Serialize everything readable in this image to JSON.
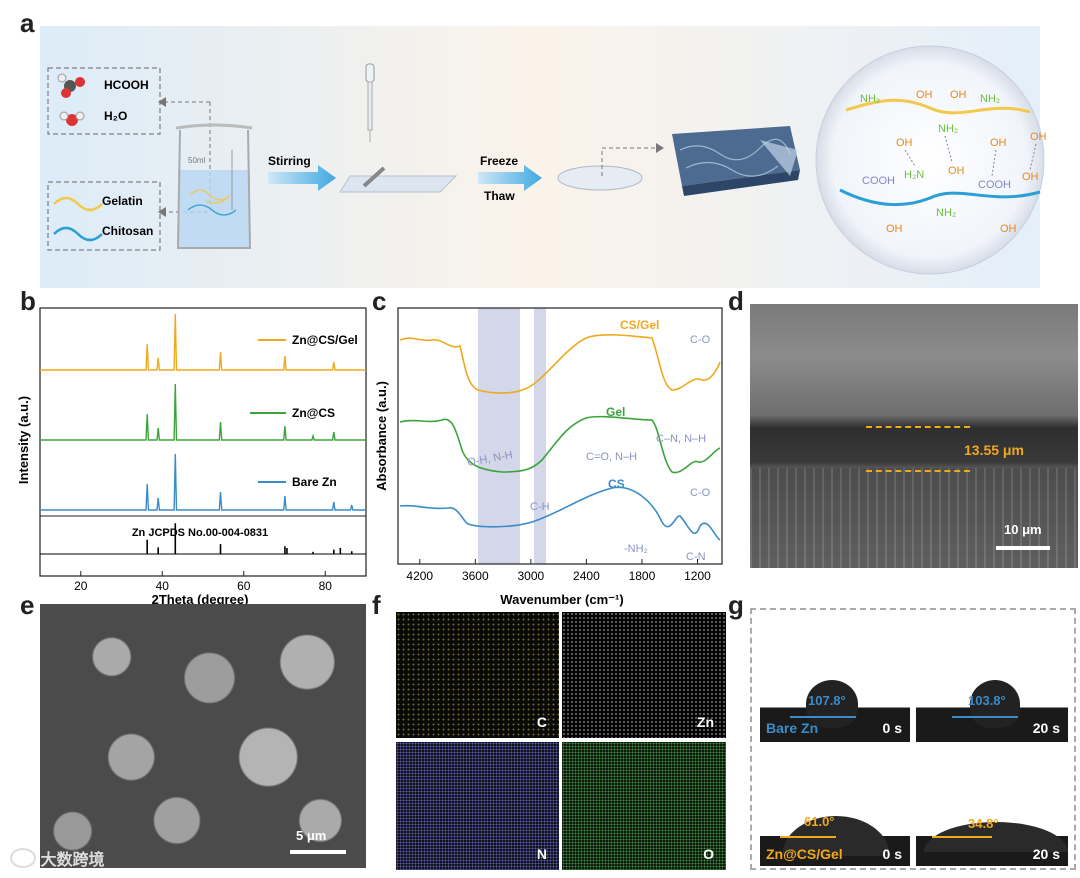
{
  "panel_letters": {
    "a": "a",
    "b": "b",
    "c": "c",
    "d": "d",
    "e": "e",
    "f": "f",
    "g": "g"
  },
  "panel_a": {
    "hcooh": "HCOOH",
    "h2o": "H₂O",
    "gelatin": "Gelatin",
    "chitosan": "Chitosan",
    "beaker_label": "50ml",
    "stirring": "Stirring",
    "freeze": "Freeze",
    "thaw": "Thaw",
    "network_labels": [
      "NH₂",
      "OH",
      "NH₂",
      "OH",
      "NH₂",
      "OH",
      "OH",
      "OH",
      "H₂N",
      "OH",
      "COOH",
      "OH",
      "COOH",
      "NH₂",
      "OH",
      "OH"
    ],
    "colors": {
      "gelatin": "#f2c94c",
      "chitosan": "#2a9fd6",
      "amine": "#6cbf3f",
      "hydroxyl": "#e88a1a",
      "carboxyl": "#8088c8"
    }
  },
  "panel_b": {
    "xlabel": "2Theta (degree)",
    "ylabel": "Intensity (a.u.)",
    "xticks": [
      "20",
      "40",
      "60",
      "80"
    ],
    "reference_label": "Zn JCPDS No.00-004-0831",
    "legend": [
      {
        "name": "Zn@CS/Gel",
        "color": "#f0a81c"
      },
      {
        "name": "Zn@CS",
        "color": "#3aa53a"
      },
      {
        "name": "Bare Zn",
        "color": "#3a8cc8"
      }
    ]
  },
  "chart_data": {
    "type": "line",
    "xlabel": "2Theta (degree)",
    "ylabel": "Intensity (a.u.)",
    "xlim": [
      10,
      90
    ],
    "reference_peaks_2theta": [
      36.3,
      39.0,
      43.2,
      54.3,
      70.1,
      70.6,
      77.0,
      82.1,
      83.7,
      86.5
    ],
    "series": [
      {
        "name": "Zn@CS/Gel",
        "peaks_2theta": [
          36.3,
          39.0,
          43.2,
          54.3,
          70.1,
          82.1
        ]
      },
      {
        "name": "Zn@CS",
        "peaks_2theta": [
          36.3,
          39.0,
          43.2,
          54.3,
          70.1,
          77.0,
          82.1
        ]
      },
      {
        "name": "Bare Zn",
        "peaks_2theta": [
          36.3,
          39.0,
          43.2,
          54.3,
          70.1,
          82.1,
          86.5
        ]
      }
    ]
  },
  "panel_c": {
    "xlabel": "Wavenumber (cm⁻¹)",
    "ylabel": "Absorbance (a.u.)",
    "xticks": [
      "4200",
      "3600",
      "3000",
      "2400",
      "1800",
      "1200"
    ],
    "series_labels": [
      "CS/Gel",
      "Gel",
      "CS"
    ],
    "annotations": [
      "C-O",
      "O-H, N-H",
      "C–N, N–H",
      "C=O, N–H",
      "C-O",
      "C-H",
      "-NH₂",
      "C-N"
    ],
    "colors": {
      "csgel": "#f0a81c",
      "gel": "#3aa53a",
      "cs": "#3a8cc8",
      "band": "#c4c9e2",
      "annotation": "#8a93c4"
    }
  },
  "panel_d": {
    "thickness": "13.55 μm",
    "scale": "10 μm"
  },
  "panel_e": {
    "scale": "5 μm",
    "watermark": "大数跨境"
  },
  "panel_f": {
    "maps": [
      "C",
      "Zn",
      "N",
      "O"
    ]
  },
  "panel_g": {
    "rows": [
      {
        "label": "Bare Zn",
        "angles": [
          "107.8°",
          "103.8°"
        ],
        "times": [
          "0 s",
          "20 s"
        ],
        "color": "#3a8cc8"
      },
      {
        "label": "Zn@CS/Gel",
        "angles": [
          "61.0°",
          "34.8°"
        ],
        "times": [
          "0 s",
          "20 s"
        ],
        "color": "#f0a81c"
      }
    ]
  }
}
